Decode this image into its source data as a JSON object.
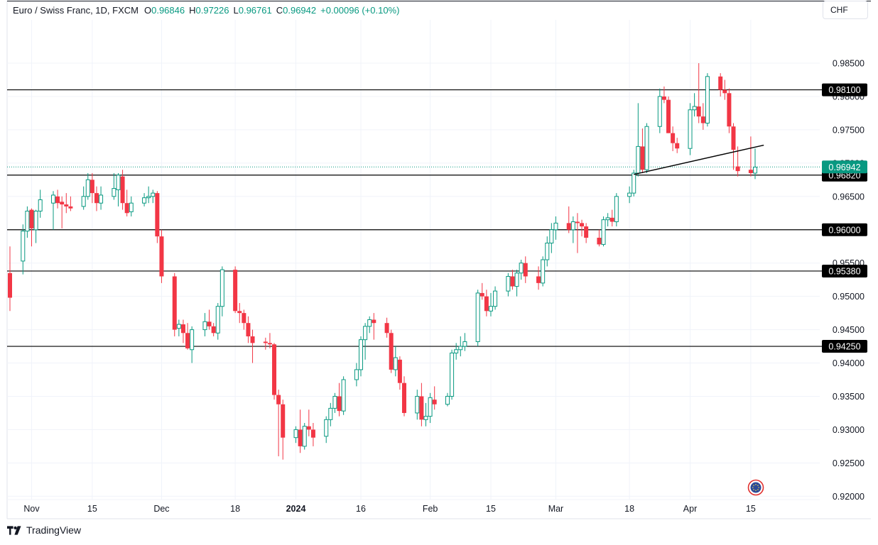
{
  "header": {
    "symbol": "Euro / Swiss Franc, 1D, FXCM",
    "open_label": "O",
    "open": "0.96846",
    "high_label": "H",
    "high": "0.97226",
    "low_label": "L",
    "low": "0.96761",
    "close_label": "C",
    "close": "0.96942",
    "change": "+0.00096 (+0.10%)",
    "currency": "CHF"
  },
  "footer": {
    "brand": "TradingView"
  },
  "colors": {
    "up": "#089981",
    "down": "#f23645",
    "grid": "#f0f3fa",
    "line": "#000000",
    "text": "#131722",
    "price_badge": "#089981"
  },
  "chart_data": {
    "type": "candlestick",
    "title": "Euro / Swiss Franc, 1D, FXCM",
    "ylim": [
      0.9195,
      0.9915
    ],
    "y_ticks": [
      "0.98500",
      "0.98000",
      "0.97500",
      "0.97000",
      "0.96500",
      "0.96000",
      "0.95500",
      "0.95000",
      "0.94500",
      "0.94000",
      "0.93500",
      "0.93000",
      "0.92500",
      "0.92000"
    ],
    "x_ticks": [
      {
        "label": "Nov",
        "date": "2023-11-01",
        "bold": false
      },
      {
        "label": "15",
        "date": "2023-11-15",
        "bold": false
      },
      {
        "label": "Dec",
        "date": "2023-12-01",
        "bold": false
      },
      {
        "label": "18",
        "date": "2023-12-18",
        "bold": false
      },
      {
        "label": "2024",
        "date": "2024-01-01",
        "bold": true
      },
      {
        "label": "16",
        "date": "2024-01-16",
        "bold": false
      },
      {
        "label": "Feb",
        "date": "2024-02-01",
        "bold": false
      },
      {
        "label": "15",
        "date": "2024-02-15",
        "bold": false
      },
      {
        "label": "Mar",
        "date": "2024-03-01",
        "bold": false
      },
      {
        "label": "18",
        "date": "2024-03-18",
        "bold": false
      },
      {
        "label": "Apr",
        "date": "2024-04-01",
        "bold": false
      },
      {
        "label": "15",
        "date": "2024-04-15",
        "bold": false
      }
    ],
    "date_range": [
      "2023-10-27",
      "2024-04-16"
    ],
    "horizontal_lines": [
      0.981,
      0.9682,
      0.96,
      0.9538,
      0.9425
    ],
    "horizontal_line_labels": [
      "0.98100",
      "0.96820",
      "0.96000",
      "0.95380",
      "0.94250"
    ],
    "last_price": 0.96942,
    "last_price_label": "0.96942",
    "trendline": [
      [
        "2024-03-19",
        0.9683
      ],
      [
        "2024-04-18",
        0.9727
      ]
    ],
    "candles": [
      [
        "2023-10-27",
        0.9535,
        0.9575,
        0.9478,
        0.9498
      ],
      [
        "2023-10-30",
        0.9553,
        0.9608,
        0.9533,
        0.9598
      ],
      [
        "2023-10-31",
        0.9598,
        0.9635,
        0.9588,
        0.9628
      ],
      [
        "2023-11-01",
        0.963,
        0.9632,
        0.9575,
        0.9602
      ],
      [
        "2023-11-02",
        0.96,
        0.963,
        0.958,
        0.9628
      ],
      [
        "2023-11-03",
        0.9628,
        0.966,
        0.9618,
        0.9645
      ],
      [
        "2023-11-06",
        0.964,
        0.9658,
        0.96,
        0.9652
      ],
      [
        "2023-11-07",
        0.965,
        0.966,
        0.9632,
        0.964
      ],
      [
        "2023-11-08",
        0.9642,
        0.965,
        0.9602,
        0.9638
      ],
      [
        "2023-11-09",
        0.9638,
        0.9655,
        0.9625,
        0.9635
      ],
      [
        "2023-11-10",
        0.9635,
        0.965,
        0.9628,
        0.9632
      ],
      [
        "2023-11-13",
        0.9635,
        0.9665,
        0.963,
        0.965
      ],
      [
        "2023-11-14",
        0.965,
        0.9685,
        0.9645,
        0.9675
      ],
      [
        "2023-11-15",
        0.9675,
        0.9685,
        0.964,
        0.9655
      ],
      [
        "2023-11-16",
        0.9655,
        0.9665,
        0.9628,
        0.964
      ],
      [
        "2023-11-17",
        0.964,
        0.9665,
        0.963,
        0.9652
      ],
      [
        "2023-11-20",
        0.965,
        0.9685,
        0.9645,
        0.9662
      ],
      [
        "2023-11-21",
        0.966,
        0.9685,
        0.9635,
        0.9682
      ],
      [
        "2023-11-22",
        0.968,
        0.969,
        0.963,
        0.964
      ],
      [
        "2023-11-23",
        0.964,
        0.966,
        0.962,
        0.9625
      ],
      [
        "2023-11-24",
        0.9627,
        0.965,
        0.962,
        0.964
      ],
      [
        "2023-11-27",
        0.964,
        0.9655,
        0.9635,
        0.9648
      ],
      [
        "2023-11-28",
        0.9648,
        0.9665,
        0.964,
        0.965
      ],
      [
        "2023-11-29",
        0.965,
        0.966,
        0.964,
        0.9655
      ],
      [
        "2023-11-30",
        0.9655,
        0.9658,
        0.958,
        0.959
      ],
      [
        "2023-12-01",
        0.959,
        0.96,
        0.952,
        0.953
      ],
      [
        "2023-12-04",
        0.953,
        0.9535,
        0.944,
        0.945
      ],
      [
        "2023-12-05",
        0.9452,
        0.9465,
        0.944,
        0.9458
      ],
      [
        "2023-12-06",
        0.9458,
        0.9465,
        0.943,
        0.9445
      ],
      [
        "2023-12-07",
        0.9445,
        0.946,
        0.942,
        0.9422
      ],
      [
        "2023-12-08",
        0.942,
        0.9455,
        0.94,
        0.945
      ],
      [
        "2023-12-11",
        0.945,
        0.9475,
        0.944,
        0.9462
      ],
      [
        "2023-12-12",
        0.9462,
        0.948,
        0.945,
        0.9455
      ],
      [
        "2023-12-13",
        0.9455,
        0.946,
        0.944,
        0.9445
      ],
      [
        "2023-12-14",
        0.9445,
        0.949,
        0.9435,
        0.9485
      ],
      [
        "2023-12-15",
        0.9485,
        0.9545,
        0.947,
        0.954
      ],
      [
        "2023-12-18",
        0.954,
        0.9545,
        0.9475,
        0.9478
      ],
      [
        "2023-12-19",
        0.9478,
        0.949,
        0.946,
        0.9475
      ],
      [
        "2023-12-20",
        0.9475,
        0.948,
        0.945,
        0.946
      ],
      [
        "2023-12-21",
        0.946,
        0.947,
        0.943,
        0.944
      ],
      [
        "2023-12-22",
        0.944,
        0.945,
        0.94,
        0.943
      ],
      [
        "2023-12-25",
        0.9432,
        0.9438,
        0.942,
        0.943
      ],
      [
        "2023-12-26",
        0.943,
        0.9445,
        0.9422,
        0.9428
      ],
      [
        "2023-12-27",
        0.9428,
        0.943,
        0.9345,
        0.9352
      ],
      [
        "2023-12-28",
        0.9352,
        0.936,
        0.926,
        0.9338
      ],
      [
        "2023-12-29",
        0.9338,
        0.9345,
        0.9255,
        0.9288
      ],
      [
        "2024-01-01",
        0.9288,
        0.9305,
        0.928,
        0.93
      ],
      [
        "2024-01-02",
        0.93,
        0.933,
        0.9265,
        0.9275
      ],
      [
        "2024-01-03",
        0.9275,
        0.931,
        0.927,
        0.9305
      ],
      [
        "2024-01-04",
        0.9305,
        0.933,
        0.929,
        0.93
      ],
      [
        "2024-01-05",
        0.93,
        0.931,
        0.9275,
        0.9288
      ],
      [
        "2024-01-08",
        0.929,
        0.932,
        0.928,
        0.9315
      ],
      [
        "2024-01-09",
        0.9315,
        0.934,
        0.9305,
        0.9332
      ],
      [
        "2024-01-10",
        0.9332,
        0.9355,
        0.9325,
        0.935
      ],
      [
        "2024-01-11",
        0.935,
        0.937,
        0.932,
        0.9328
      ],
      [
        "2024-01-12",
        0.9328,
        0.938,
        0.9322,
        0.9375
      ],
      [
        "2024-01-15",
        0.9375,
        0.94,
        0.9365,
        0.939
      ],
      [
        "2024-01-16",
        0.939,
        0.944,
        0.938,
        0.9435
      ],
      [
        "2024-01-17",
        0.9435,
        0.946,
        0.9405,
        0.9455
      ],
      [
        "2024-01-18",
        0.9455,
        0.947,
        0.9445,
        0.9465
      ],
      [
        "2024-01-19",
        0.9465,
        0.9475,
        0.9435,
        0.946
      ],
      [
        "2024-01-22",
        0.946,
        0.9468,
        0.9438,
        0.9445
      ],
      [
        "2024-01-23",
        0.9445,
        0.945,
        0.9385,
        0.939
      ],
      [
        "2024-01-24",
        0.939,
        0.9425,
        0.938,
        0.9408
      ],
      [
        "2024-01-25",
        0.9405,
        0.941,
        0.936,
        0.937
      ],
      [
        "2024-01-26",
        0.937,
        0.938,
        0.932,
        0.9325
      ],
      [
        "2024-01-29",
        0.9325,
        0.936,
        0.9315,
        0.935
      ],
      [
        "2024-01-30",
        0.935,
        0.937,
        0.9305,
        0.9315
      ],
      [
        "2024-01-31",
        0.9315,
        0.934,
        0.9305,
        0.932
      ],
      [
        "2024-02-01",
        0.932,
        0.9355,
        0.931,
        0.9348
      ],
      [
        "2024-02-02",
        0.9345,
        0.9365,
        0.933,
        0.9338
      ],
      [
        "2024-02-05",
        0.9338,
        0.9355,
        0.9335,
        0.935
      ],
      [
        "2024-02-06",
        0.935,
        0.942,
        0.9345,
        0.9415
      ],
      [
        "2024-02-07",
        0.9415,
        0.943,
        0.9405,
        0.942
      ],
      [
        "2024-02-08",
        0.942,
        0.944,
        0.941,
        0.9425
      ],
      [
        "2024-02-09",
        0.9425,
        0.9445,
        0.9418,
        0.9432
      ],
      [
        "2024-02-12",
        0.9432,
        0.951,
        0.9425,
        0.9505
      ],
      [
        "2024-02-13",
        0.9505,
        0.952,
        0.9495,
        0.95
      ],
      [
        "2024-02-14",
        0.95,
        0.951,
        0.947,
        0.9478
      ],
      [
        "2024-02-15",
        0.9478,
        0.9505,
        0.947,
        0.9485
      ],
      [
        "2024-02-16",
        0.9485,
        0.9515,
        0.948,
        0.9508
      ],
      [
        "2024-02-19",
        0.9508,
        0.9535,
        0.95,
        0.953
      ],
      [
        "2024-02-20",
        0.953,
        0.954,
        0.951,
        0.9515
      ],
      [
        "2024-02-21",
        0.9515,
        0.954,
        0.95,
        0.9535
      ],
      [
        "2024-02-22",
        0.9535,
        0.9555,
        0.9525,
        0.955
      ],
      [
        "2024-02-23",
        0.955,
        0.956,
        0.952,
        0.953
      ],
      [
        "2024-02-26",
        0.953,
        0.9545,
        0.951,
        0.952
      ],
      [
        "2024-02-27",
        0.952,
        0.956,
        0.9515,
        0.9555
      ],
      [
        "2024-02-28",
        0.9555,
        0.959,
        0.9545,
        0.958
      ],
      [
        "2024-02-29",
        0.958,
        0.961,
        0.9565,
        0.96
      ],
      [
        "2024-03-01",
        0.96,
        0.962,
        0.9585,
        0.961
      ],
      [
        "2024-03-04",
        0.961,
        0.9635,
        0.9595,
        0.96
      ],
      [
        "2024-03-05",
        0.96,
        0.962,
        0.958,
        0.9612
      ],
      [
        "2024-03-06",
        0.9612,
        0.9625,
        0.9565,
        0.961
      ],
      [
        "2024-03-07",
        0.961,
        0.9615,
        0.959,
        0.9605
      ],
      [
        "2024-03-08",
        0.9605,
        0.961,
        0.958,
        0.9588
      ],
      [
        "2024-03-11",
        0.9588,
        0.96,
        0.9575,
        0.9578
      ],
      [
        "2024-03-12",
        0.9578,
        0.962,
        0.9575,
        0.9615
      ],
      [
        "2024-03-13",
        0.9615,
        0.9625,
        0.9605,
        0.9618
      ],
      [
        "2024-03-14",
        0.9618,
        0.963,
        0.9605,
        0.9612
      ],
      [
        "2024-03-15",
        0.9612,
        0.9655,
        0.9605,
        0.965
      ],
      [
        "2024-03-18",
        0.965,
        0.9665,
        0.964,
        0.9655
      ],
      [
        "2024-03-19",
        0.9655,
        0.969,
        0.965,
        0.9685
      ],
      [
        "2024-03-20",
        0.9685,
        0.979,
        0.968,
        0.9725
      ],
      [
        "2024-03-21",
        0.9725,
        0.9752,
        0.9685,
        0.969
      ],
      [
        "2024-03-22",
        0.969,
        0.976,
        0.9685,
        0.9755
      ],
      [
        "2024-03-25",
        0.9755,
        0.9812,
        0.9745,
        0.98
      ],
      [
        "2024-03-26",
        0.98,
        0.9815,
        0.979,
        0.9795
      ],
      [
        "2024-03-27",
        0.9795,
        0.98,
        0.9745,
        0.9745
      ],
      [
        "2024-03-28",
        0.9745,
        0.9755,
        0.9718,
        0.973
      ],
      [
        "2024-03-29",
        0.973,
        0.9738,
        0.9715,
        0.9722
      ],
      [
        "2024-04-01",
        0.9722,
        0.979,
        0.9712,
        0.978
      ],
      [
        "2024-04-02",
        0.978,
        0.9805,
        0.977,
        0.9785
      ],
      [
        "2024-04-03",
        0.9785,
        0.985,
        0.976,
        0.977
      ],
      [
        "2024-04-04",
        0.977,
        0.979,
        0.975,
        0.976
      ],
      [
        "2024-04-05",
        0.976,
        0.9835,
        0.9755,
        0.983
      ],
      [
        "2024-04-08",
        0.983,
        0.9835,
        0.98,
        0.981
      ],
      [
        "2024-04-09",
        0.981,
        0.9825,
        0.9795,
        0.9805
      ],
      [
        "2024-04-10",
        0.9805,
        0.9812,
        0.9745,
        0.9755
      ],
      [
        "2024-04-11",
        0.9755,
        0.976,
        0.969,
        0.972
      ],
      [
        "2024-04-12",
        0.9695,
        0.9725,
        0.968,
        0.9688
      ],
      [
        "2024-04-15",
        0.969,
        0.974,
        0.968,
        0.9685
      ],
      [
        "2024-04-16",
        0.9685,
        0.9722,
        0.9676,
        0.9694
      ]
    ]
  }
}
